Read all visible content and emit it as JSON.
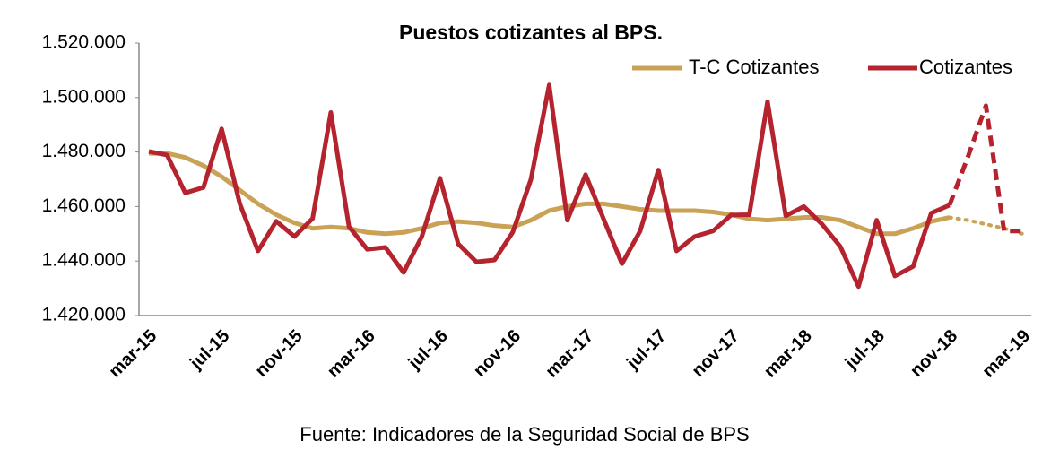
{
  "chart_data": {
    "type": "line",
    "title": "Puestos cotizantes al BPS.",
    "source": "Fuente: Indicadores de la Seguridad Social de BPS",
    "categories": [
      "mar-15",
      null,
      null,
      null,
      "jul-15",
      null,
      null,
      null,
      "nov-15",
      null,
      null,
      null,
      "mar-16",
      null,
      null,
      null,
      "jul-16",
      null,
      null,
      null,
      "nov-16",
      null,
      null,
      null,
      "mar-17",
      null,
      null,
      null,
      "jul-17",
      null,
      null,
      null,
      "nov-17",
      null,
      null,
      null,
      "mar-18",
      null,
      null,
      null,
      "jul-18",
      null,
      null,
      null,
      "nov-18",
      null,
      null,
      null,
      "mar-19"
    ],
    "series": [
      {
        "name": "T-C Cotizantes",
        "color": "#c9a256",
        "projected_from": 44,
        "projection_style": "dotted",
        "values": [
          1479500,
          1479500,
          1478000,
          1475000,
          1471000,
          1466000,
          1461000,
          1457000,
          1454000,
          1452000,
          1452500,
          1452000,
          1450500,
          1450000,
          1450500,
          1452000,
          1454000,
          1454500,
          1454000,
          1453000,
          1452500,
          1455000,
          1458500,
          1460000,
          1461000,
          1461000,
          1460000,
          1459000,
          1458500,
          1458500,
          1458500,
          1458000,
          1457000,
          1455500,
          1455000,
          1455500,
          1456000,
          1456000,
          1455000,
          1452500,
          1450000,
          1450000,
          1452000,
          1454500,
          1456000,
          1455000,
          1453500,
          1452000,
          1450000
        ]
      },
      {
        "name": "Cotizantes",
        "color": "#b5232e",
        "projected_from": 44,
        "projection_style": "dashed",
        "values": [
          1480200,
          1478900,
          1465000,
          1467000,
          1488500,
          1461000,
          1443700,
          1454600,
          1449000,
          1455600,
          1494500,
          1452600,
          1444300,
          1445000,
          1435800,
          1449000,
          1470400,
          1446300,
          1439700,
          1440400,
          1450600,
          1470000,
          1504600,
          1455000,
          1471700,
          1455300,
          1439000,
          1451000,
          1473400,
          1443700,
          1449000,
          1451000,
          1456900,
          1457000,
          1498500,
          1456600,
          1460000,
          1453500,
          1445300,
          1430600,
          1455000,
          1434500,
          1438000,
          1457600,
          1460500,
          1478000,
          1497000,
          1451000,
          1451000
        ]
      }
    ],
    "ylim": [
      1420000,
      1520000
    ],
    "yticks": [
      {
        "value": 1420000,
        "label": "1.420.000"
      },
      {
        "value": 1440000,
        "label": "1.440.000"
      },
      {
        "value": 1460000,
        "label": "1.460.000"
      },
      {
        "value": 1480000,
        "label": "1.480.000"
      },
      {
        "value": 1500000,
        "label": "1.500.000"
      },
      {
        "value": 1520000,
        "label": "1.520.000"
      }
    ],
    "legend": "top-right",
    "grid": false
  }
}
